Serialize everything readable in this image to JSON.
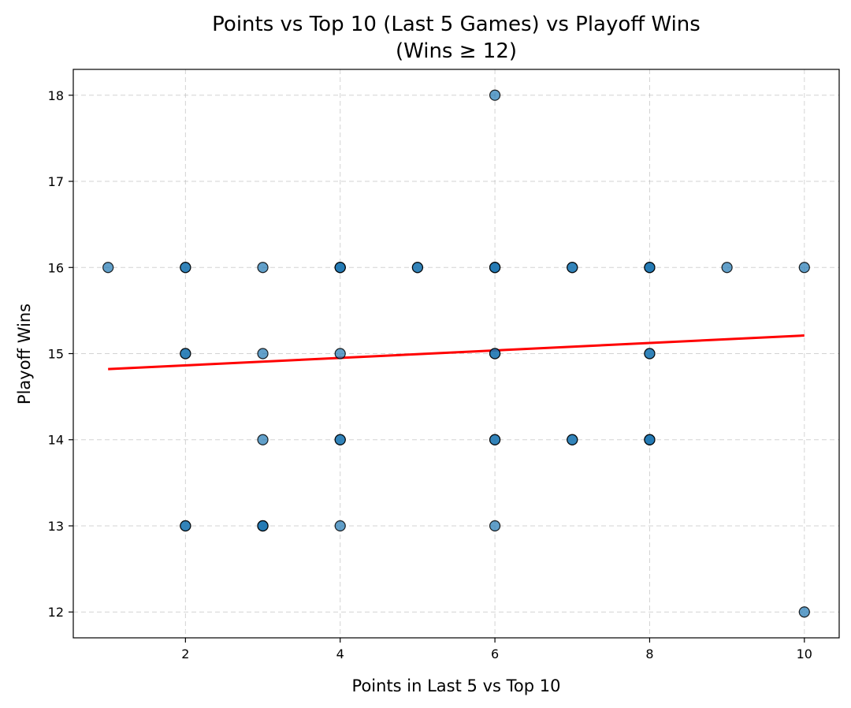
{
  "chart_data": {
    "type": "scatter",
    "title": "Points vs Top 10 (Last 5 Games) vs Playoff Wins",
    "subtitle": "(Wins ≥ 12)",
    "xlabel": "Points in Last 5 vs Top 10",
    "ylabel": "Playoff Wins",
    "xlim": [
      0.55,
      10.45
    ],
    "ylim": [
      11.7,
      18.3
    ],
    "xticks": [
      2,
      4,
      6,
      8,
      10
    ],
    "yticks": [
      12,
      13,
      14,
      15,
      16,
      17,
      18
    ],
    "grid": true,
    "colors": {
      "points": "#1f77b4",
      "trend": "#ff0000"
    },
    "points": [
      {
        "x": 1,
        "y": 16
      },
      {
        "x": 2,
        "y": 16
      },
      {
        "x": 2,
        "y": 16
      },
      {
        "x": 2,
        "y": 15
      },
      {
        "x": 2,
        "y": 15
      },
      {
        "x": 2,
        "y": 13
      },
      {
        "x": 2,
        "y": 13
      },
      {
        "x": 3,
        "y": 16
      },
      {
        "x": 3,
        "y": 15
      },
      {
        "x": 3,
        "y": 14
      },
      {
        "x": 3,
        "y": 13
      },
      {
        "x": 3,
        "y": 13
      },
      {
        "x": 3,
        "y": 13
      },
      {
        "x": 4,
        "y": 16
      },
      {
        "x": 4,
        "y": 16
      },
      {
        "x": 4,
        "y": 16
      },
      {
        "x": 4,
        "y": 15
      },
      {
        "x": 4,
        "y": 14
      },
      {
        "x": 4,
        "y": 14
      },
      {
        "x": 4,
        "y": 13
      },
      {
        "x": 5,
        "y": 16
      },
      {
        "x": 5,
        "y": 16
      },
      {
        "x": 6,
        "y": 18
      },
      {
        "x": 6,
        "y": 16
      },
      {
        "x": 6,
        "y": 16
      },
      {
        "x": 6,
        "y": 16
      },
      {
        "x": 6,
        "y": 15
      },
      {
        "x": 6,
        "y": 15
      },
      {
        "x": 6,
        "y": 14
      },
      {
        "x": 6,
        "y": 14
      },
      {
        "x": 6,
        "y": 13
      },
      {
        "x": 7,
        "y": 16
      },
      {
        "x": 7,
        "y": 16
      },
      {
        "x": 7,
        "y": 14
      },
      {
        "x": 7,
        "y": 14
      },
      {
        "x": 8,
        "y": 16
      },
      {
        "x": 8,
        "y": 16
      },
      {
        "x": 8,
        "y": 16
      },
      {
        "x": 8,
        "y": 15
      },
      {
        "x": 8,
        "y": 15
      },
      {
        "x": 8,
        "y": 14
      },
      {
        "x": 8,
        "y": 14
      },
      {
        "x": 8,
        "y": 14
      },
      {
        "x": 9,
        "y": 16
      },
      {
        "x": 10,
        "y": 16
      },
      {
        "x": 10,
        "y": 12
      }
    ],
    "trendline": {
      "x": [
        1,
        10
      ],
      "y": [
        14.82,
        15.21
      ]
    }
  }
}
